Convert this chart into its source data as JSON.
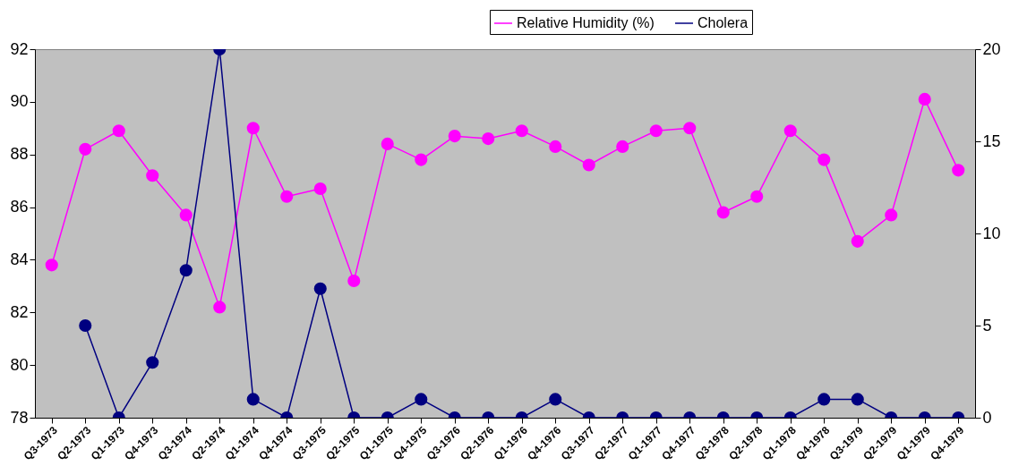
{
  "chart_data": {
    "type": "line",
    "categories": [
      "Q3-1973",
      "Q2-1973",
      "Q1-1973",
      "Q4-1973",
      "Q3-1974",
      "Q2-1974",
      "Q1-1974",
      "Q4-1974",
      "Q3-1975",
      "Q2-1975",
      "Q1-1975",
      "Q4-1975",
      "Q3-1976",
      "Q2-1976",
      "Q1-1976",
      "Q4-1976",
      "Q3-1977",
      "Q2-1977",
      "Q1-1977",
      "Q4-1977",
      "Q3-1978",
      "Q2-1978",
      "Q1-1978",
      "Q4-1978",
      "Q3-1979",
      "Q2-1979",
      "Q1-1979",
      "Q4-1979"
    ],
    "series": [
      {
        "name": "Relative Humidity (%)",
        "color": "#ff00ff",
        "values": [
          83.8,
          88.2,
          88.9,
          87.2,
          85.7,
          82.2,
          89.0,
          86.4,
          86.7,
          83.2,
          88.4,
          87.8,
          88.7,
          88.6,
          88.9,
          88.3,
          87.6,
          88.3,
          88.9,
          89.0,
          85.8,
          86.4,
          88.9,
          87.8,
          84.7,
          85.7,
          90.1,
          87.4
        ]
      },
      {
        "name": "Cholera",
        "color": "#000080",
        "axis": "y2",
        "values": [
          null,
          5,
          0,
          3,
          8,
          20,
          1,
          0,
          7,
          0,
          0,
          1,
          0,
          0,
          0,
          1,
          0,
          0,
          0,
          0,
          0,
          0,
          0,
          1,
          1,
          0,
          0,
          0
        ]
      }
    ],
    "ylim": [
      78,
      92
    ],
    "yticks": [
      78,
      80,
      82,
      84,
      86,
      88,
      90,
      92
    ],
    "y2lim": [
      0,
      20
    ],
    "y2ticks": [
      0,
      5,
      10,
      15,
      20
    ],
    "grid": false,
    "legend": "top right",
    "marker": "circle",
    "line_style": "solid"
  }
}
